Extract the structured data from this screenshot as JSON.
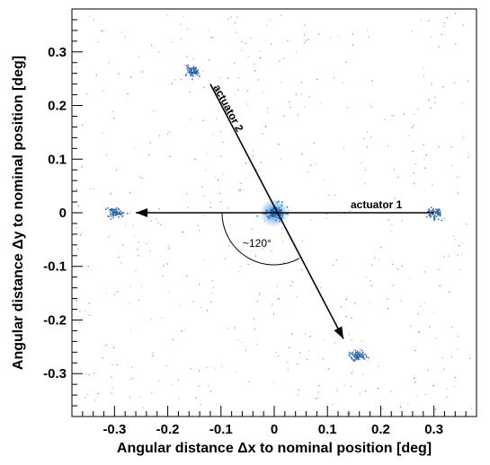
{
  "chart_data": {
    "type": "scatter",
    "title": "",
    "xlabel": "Angular distance Δx to nominal position [deg]",
    "ylabel": "Angular distance Δy to nominal position [deg]",
    "xlim": [
      -0.38,
      0.38
    ],
    "ylim": [
      -0.38,
      0.38
    ],
    "x_ticks": [
      -0.3,
      -0.2,
      -0.1,
      0,
      0.1,
      0.2,
      0.3
    ],
    "x_tick_labels": [
      "-0.3",
      "-0.2",
      "-0.1",
      "0",
      "0.1",
      "0.2",
      "0.3"
    ],
    "y_ticks": [
      0.3,
      0.2,
      0.1,
      0,
      -0.1,
      -0.2,
      -0.3
    ],
    "y_tick_labels": [
      "0.3",
      "0.2",
      "0.1",
      "0",
      "-0.1",
      "-0.2",
      "-0.3"
    ],
    "grid": false,
    "clusters": [
      {
        "x": 0.0,
        "y": 0.0
      },
      {
        "x": 0.3,
        "y": 0.0
      },
      {
        "x": -0.3,
        "y": 0.0
      },
      {
        "x": -0.155,
        "y": 0.265
      },
      {
        "x": 0.155,
        "y": -0.265
      }
    ],
    "annotations": {
      "actuator1": {
        "label": "actuator 1",
        "from": [
          0.3,
          0.0
        ],
        "to": [
          -0.26,
          0.0
        ]
      },
      "actuator2": {
        "label": "actuator 2",
        "from": [
          -0.12,
          0.24
        ],
        "to": [
          0.13,
          -0.235
        ]
      },
      "angle": {
        "label": "~120°"
      }
    },
    "colors": {
      "points": "#1f78d1",
      "arrows": "#000000",
      "frame": "#000000"
    }
  }
}
